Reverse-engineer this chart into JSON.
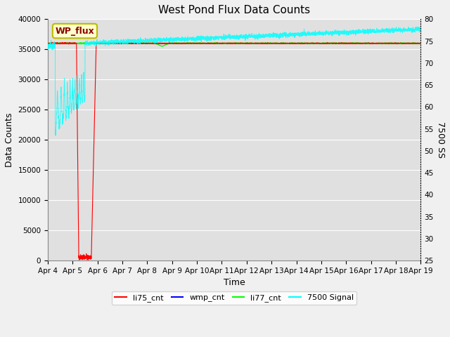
{
  "title": "West Pond Flux Data Counts",
  "xlabel": "Time",
  "ylabel_left": "Data Counts",
  "ylabel_right": "7500 SS",
  "xlim_days": [
    0,
    15
  ],
  "ylim_left": [
    0,
    40000
  ],
  "ylim_right": [
    25,
    80
  ],
  "x_tick_labels": [
    "Apr 4",
    "Apr 5",
    "Apr 6",
    "Apr 7",
    "Apr 8",
    "Apr 9",
    "Apr 10",
    "Apr 11",
    "Apr 12",
    "Apr 13",
    "Apr 14",
    "Apr 15",
    "Apr 16",
    "Apr 17",
    "Apr 18",
    "Apr 19"
  ],
  "legend_labels": [
    "li75_cnt",
    "wmp_cnt",
    "li77_cnt",
    "7500 Signal"
  ],
  "legend_colors": [
    "red",
    "blue",
    "lime",
    "cyan"
  ],
  "annotation_text": "WP_flux",
  "annotation_bg": "#ffffcc",
  "annotation_border": "#bbbb00",
  "fig_bg_color": "#f0f0f0",
  "plot_bg_color": "#e0e0e0",
  "grid_color": "#ffffff",
  "title_fontsize": 11,
  "tick_fontsize": 7.5,
  "label_fontsize": 9
}
